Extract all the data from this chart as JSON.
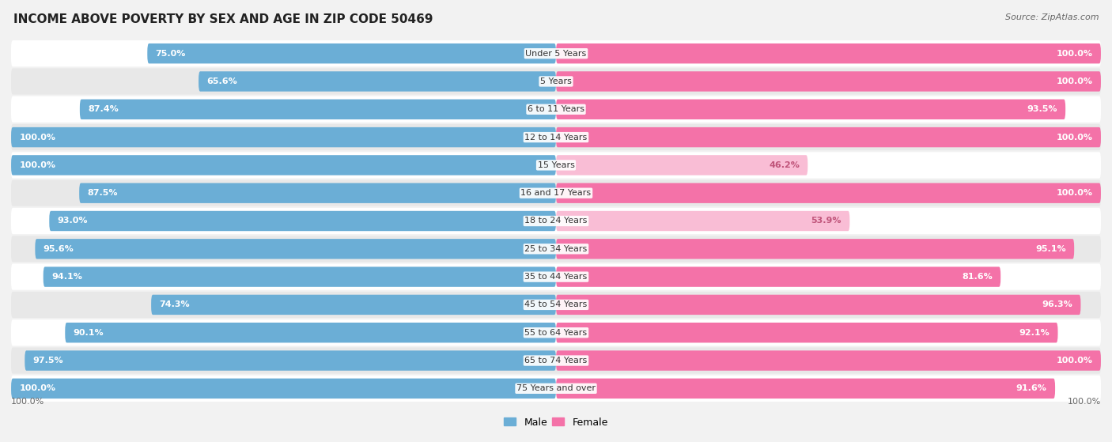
{
  "title": "INCOME ABOVE POVERTY BY SEX AND AGE IN ZIP CODE 50469",
  "source": "Source: ZipAtlas.com",
  "categories": [
    "Under 5 Years",
    "5 Years",
    "6 to 11 Years",
    "12 to 14 Years",
    "15 Years",
    "16 and 17 Years",
    "18 to 24 Years",
    "25 to 34 Years",
    "35 to 44 Years",
    "45 to 54 Years",
    "55 to 64 Years",
    "65 to 74 Years",
    "75 Years and over"
  ],
  "male_values": [
    75.0,
    65.6,
    87.4,
    100.0,
    100.0,
    87.5,
    93.0,
    95.6,
    94.1,
    74.3,
    90.1,
    97.5,
    100.0
  ],
  "female_values": [
    100.0,
    100.0,
    93.5,
    100.0,
    46.2,
    100.0,
    53.9,
    95.1,
    81.6,
    96.3,
    92.1,
    100.0,
    91.6
  ],
  "male_color": "#6baed6",
  "female_color": "#f472a8",
  "female_color_light": "#f9bdd5",
  "male_label": "Male",
  "female_label": "Female",
  "bg_color": "#f2f2f2",
  "row_bg_odd": "#ffffff",
  "row_bg_even": "#e8e8e8",
  "title_fontsize": 11,
  "source_fontsize": 8,
  "value_fontsize": 8,
  "cat_fontsize": 8,
  "bottom_label": "100.0%"
}
